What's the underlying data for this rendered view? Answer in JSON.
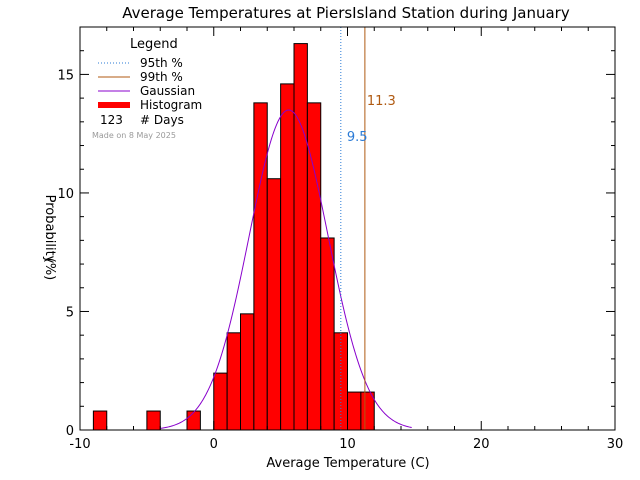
{
  "chart_data": {
    "type": "bar",
    "title": "Average Temperatures at PiersIsland Station during January",
    "xlabel": "Average Temperature (C)",
    "ylabel_line1": "Probability",
    "ylabel_line2": "(%)",
    "xlim": [
      -10,
      30
    ],
    "ylim": [
      0,
      17
    ],
    "xticks": [
      -10,
      0,
      10,
      20,
      30
    ],
    "yticks": [
      0,
      5,
      10,
      15
    ],
    "bin_width": 1,
    "histogram": [
      {
        "x": -9,
        "value": 0.8
      },
      {
        "x": -5,
        "value": 0.8
      },
      {
        "x": -2,
        "value": 0.8
      },
      {
        "x": 0,
        "value": 2.4
      },
      {
        "x": 1,
        "value": 4.1
      },
      {
        "x": 2,
        "value": 4.9
      },
      {
        "x": 3,
        "value": 13.8
      },
      {
        "x": 4,
        "value": 10.6
      },
      {
        "x": 5,
        "value": 14.6
      },
      {
        "x": 6,
        "value": 16.3
      },
      {
        "x": 7,
        "value": 13.8
      },
      {
        "x": 8,
        "value": 8.1
      },
      {
        "x": 9,
        "value": 4.1
      },
      {
        "x": 10,
        "value": 1.6
      },
      {
        "x": 11,
        "value": 1.6
      }
    ],
    "gaussian": {
      "mean": 5.6,
      "sigma": 2.95,
      "peak": 13.5
    },
    "percentile95": {
      "value": 9.5,
      "label": "9.5",
      "color": "#2b7bd6"
    },
    "percentile99": {
      "value": 11.3,
      "label": "11.3",
      "color": "#b05a12"
    },
    "colors": {
      "histogram": "#ff0000",
      "gaussian": "#8800cc"
    },
    "legend": {
      "title": "Legend",
      "items": [
        {
          "label": "95th %",
          "style": "dotted",
          "color": "#2b7bd6"
        },
        {
          "label": "99th %",
          "style": "solid",
          "color": "#b05a12"
        },
        {
          "label": "Gaussian",
          "style": "solid",
          "color": "#8800cc"
        },
        {
          "label": "Histogram",
          "style": "thick",
          "color": "#ff0000"
        }
      ],
      "days_count": "123",
      "days_label": "# Days",
      "made_on": "Made on 8 May 2025"
    }
  }
}
